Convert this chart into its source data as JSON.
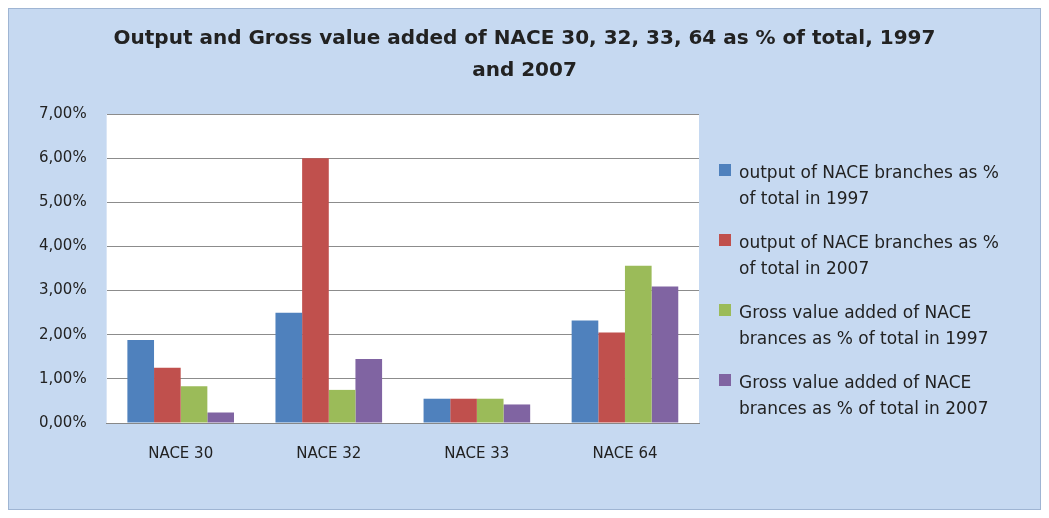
{
  "chart_data": {
    "type": "bar",
    "title": "Output and Gross value added of NACE 30, 32, 33, 64 as % of total, 1997 and 2007",
    "categories": [
      "NACE 30",
      "NACE 32",
      "NACE 33",
      "NACE 64"
    ],
    "series": [
      {
        "name": "output of NACE branches as % of total in 1997",
        "color": "#4f81bd",
        "values": [
          1.88,
          2.5,
          0.55,
          2.32
        ]
      },
      {
        "name": "output of NACE branches as % of total in 2007",
        "color": "#c0504d",
        "values": [
          1.25,
          6.0,
          0.55,
          2.05
        ]
      },
      {
        "name": "Gross value added of NACE brances as % of total in 1997",
        "color": "#9bbb59",
        "values": [
          0.83,
          0.75,
          0.55,
          3.56
        ]
      },
      {
        "name": "Gross value added of NACE brances as % of total in 2007",
        "color": "#8064a2",
        "values": [
          0.24,
          1.45,
          0.42,
          3.09
        ]
      }
    ],
    "ylim": [
      0,
      7
    ],
    "yticks": [
      {
        "value": 0,
        "label": "0,00%"
      },
      {
        "value": 1,
        "label": "1,00%"
      },
      {
        "value": 2,
        "label": "2,00%"
      },
      {
        "value": 3,
        "label": "3,00%"
      },
      {
        "value": 4,
        "label": "4,00%"
      },
      {
        "value": 5,
        "label": "5,00%"
      },
      {
        "value": 6,
        "label": "6,00%"
      },
      {
        "value": 7,
        "label": "7,00%"
      }
    ],
    "grid": "y",
    "legend": "right"
  }
}
